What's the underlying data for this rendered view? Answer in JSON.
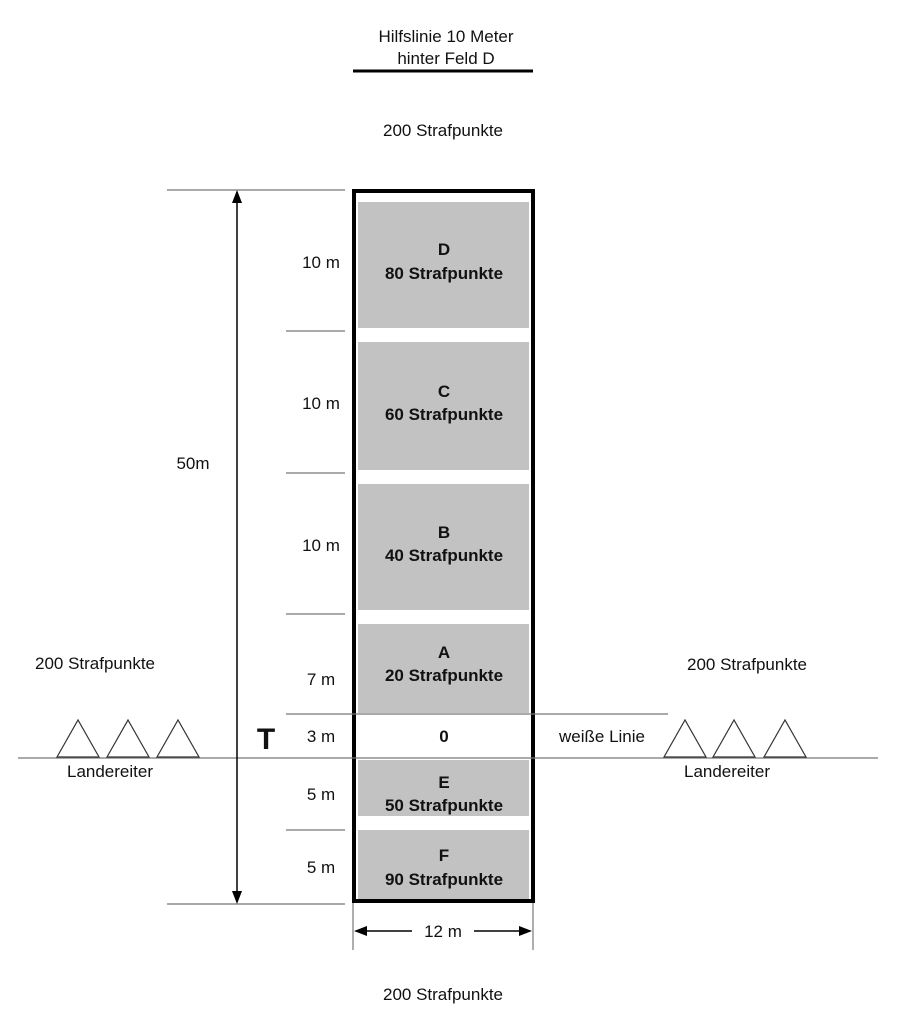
{
  "top_note": {
    "line1": "Hilfslinie 10 Meter",
    "line2": "hinter Feld D"
  },
  "penalty_top": "200 Strafpunkte",
  "penalty_bottom": "200 Strafpunkte",
  "penalty_left": "200 Strafpunkte",
  "penalty_right": "200 Strafpunkte",
  "total_length": "50m",
  "width_label": "12 m",
  "target_marker": "T",
  "white_line_label": "weiße Linie",
  "landereiter_left": "Landereiter",
  "landereiter_right": "Landereiter",
  "fields": [
    {
      "id": "D",
      "points": "80 Strafpunkte",
      "length": "10 m",
      "fill": "#c2c2c2"
    },
    {
      "id": "C",
      "points": "60 Strafpunkte",
      "length": "10 m",
      "fill": "#c2c2c2"
    },
    {
      "id": "B",
      "points": "40 Strafpunkte",
      "length": "10 m",
      "fill": "#c2c2c2"
    },
    {
      "id": "A",
      "points": "20 Strafpunkte",
      "length": "7 m",
      "fill": "#c2c2c2"
    },
    {
      "id": "0",
      "points": "",
      "length": "3 m",
      "fill": "#ffffff"
    },
    {
      "id": "E",
      "points": "50 Strafpunkte",
      "length": "5 m",
      "fill": "#c2c2c2"
    },
    {
      "id": "F",
      "points": "90 Strafpunkte",
      "length": "5 m",
      "fill": "#c2c2c2"
    }
  ],
  "colors": {
    "field": "#c2c2c2",
    "line": "#000000",
    "guide": "#777777"
  }
}
